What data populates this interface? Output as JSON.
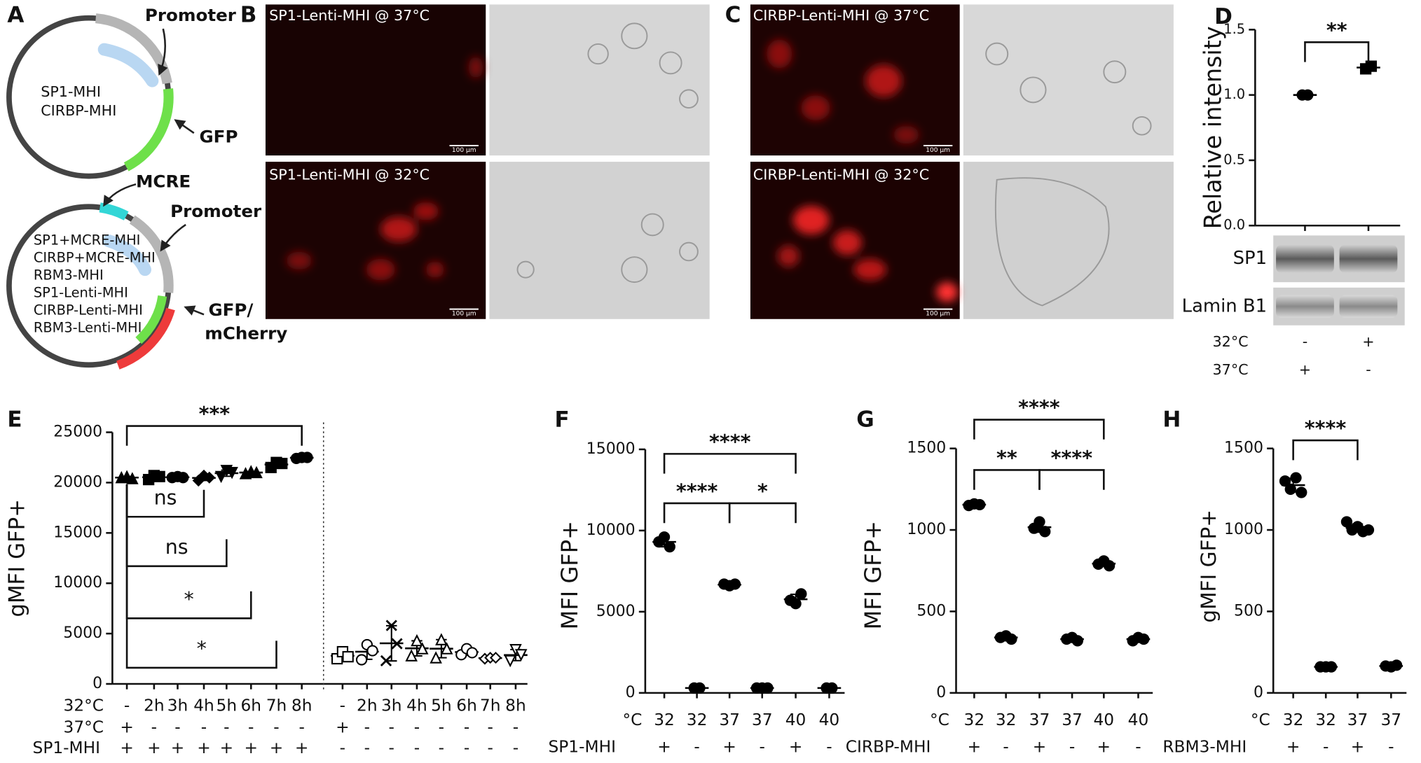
{
  "panel_a": {
    "label": "A",
    "top_plasmid": {
      "promoter": "Promoter",
      "names": [
        "SP1-MHI",
        "CIRBP-MHI"
      ],
      "reporter": "GFP"
    },
    "bottom_plasmid": {
      "element": "MCRE",
      "promoter": "Promoter",
      "names": [
        "SP1+MCRE-MHI",
        "CIRBP+MCRE-MHI",
        "RBM3-MHI",
        "SP1-Lenti-MHI",
        "CIRBP-Lenti-MHI",
        "RBM3-Lenti-MHI"
      ],
      "reporter": [
        "GFP/",
        "mCherry"
      ]
    }
  },
  "panel_b": {
    "label": "B",
    "images": [
      "SP1-Lenti-MHI @ 37°C",
      "SP1-Lenti-MHI @ 32°C"
    ],
    "scale_bar": "100 µm"
  },
  "panel_c": {
    "label": "C",
    "images": [
      "CIRBP-Lenti-MHI @ 37°C",
      "CIRBP-Lenti-MHI @ 32°C"
    ],
    "scale_bar": "100 µm"
  },
  "chart_data": [
    {
      "type": "dot",
      "panel_label": "D",
      "ylabel": "Relative intensity",
      "ylim": [
        0,
        1.5
      ],
      "yticks": [
        {
          "value": 0,
          "label": "0.0"
        },
        0.5,
        {
          "value": 1,
          "label": "1.0"
        },
        1.5
      ],
      "groups": [
        [
          1.0,
          1.0
        ],
        [
          1.2,
          1.22
        ]
      ],
      "color": "#000000",
      "blot_labels": [
        "SP1",
        "Lamin B1"
      ],
      "rows": [
        {
          "label": "32°C",
          "cells": [
            "-",
            "+"
          ]
        },
        {
          "label": "37°C",
          "cells": [
            "+",
            "-"
          ]
        }
      ],
      "comparisons": [
        {
          "groups": [
            0,
            1
          ],
          "label": "**"
        }
      ]
    },
    {
      "type": "dot",
      "panel_label": "E",
      "ylabel": "gMFI GFP+",
      "ylim": [
        0,
        25000
      ],
      "yticks": [
        0,
        5000,
        10000,
        15000,
        20000,
        25000
      ],
      "groups": [
        [
          20500,
          20600,
          20400
        ],
        [
          20300,
          20700,
          20600
        ],
        [
          20500,
          20600,
          20500
        ],
        [
          20200,
          20700,
          20500
        ],
        [
          20600,
          21200,
          21000
        ],
        [
          20900,
          21100,
          21000
        ],
        [
          21500,
          22000,
          21900
        ],
        [
          22400,
          22500,
          22500
        ],
        [
          2500,
          3200,
          2700
        ],
        [
          2400,
          3900,
          3300
        ],
        [
          2300,
          5800,
          4000
        ],
        [
          2800,
          4300,
          3500
        ],
        [
          2600,
          4400,
          3500
        ],
        [
          2900,
          3500,
          3100
        ],
        [
          2500,
          2600,
          2600
        ],
        [
          2300,
          3400,
          2900
        ]
      ],
      "color": "#000000",
      "rows": [
        {
          "label": "32°C",
          "cells": [
            "-",
            "2h",
            "3h",
            "4h",
            "5h",
            "6h",
            "7h",
            "8h",
            "-",
            "2h",
            "3h",
            "4h",
            "5h",
            "6h",
            "7h",
            "8h"
          ]
        },
        {
          "label": "37°C",
          "cells": [
            "+",
            "-",
            "-",
            "-",
            "-",
            "-",
            "-",
            "-",
            "+",
            "-",
            "-",
            "-",
            "-",
            "-",
            "-",
            "-"
          ]
        },
        {
          "label": "SP1-MHI",
          "cells": [
            "+",
            "+",
            "+",
            "+",
            "+",
            "+",
            "+",
            "+",
            "-",
            "-",
            "-",
            "-",
            "-",
            "-",
            "-",
            "-"
          ]
        }
      ],
      "comparisons": [
        {
          "groups": [
            0,
            7
          ],
          "label": "***"
        },
        {
          "groups": [
            0,
            3
          ],
          "label": "ns"
        },
        {
          "groups": [
            0,
            4
          ],
          "label": "ns"
        },
        {
          "groups": [
            0,
            5
          ],
          "label": "*"
        },
        {
          "groups": [
            0,
            6
          ],
          "label": "*"
        }
      ]
    },
    {
      "type": "dot",
      "panel_label": "F",
      "ylabel": "MFI GFP+",
      "ylim": [
        0,
        15000
      ],
      "yticks": [
        0,
        5000,
        10000,
        15000
      ],
      "groups": [
        [
          9300,
          9600,
          9000
        ],
        [
          300,
          300
        ],
        [
          6700,
          6600,
          6700
        ],
        [
          300,
          300,
          300
        ],
        [
          5700,
          5500,
          6100
        ],
        [
          300,
          300
        ]
      ],
      "color": "#000000",
      "rows": [
        {
          "label": "°C",
          "cells": [
            "32",
            "32",
            "37",
            "37",
            "40",
            "40"
          ]
        },
        {
          "label": "SP1-MHI",
          "cells": [
            "+",
            "-",
            "+",
            "-",
            "+",
            "-"
          ]
        }
      ],
      "comparisons": [
        {
          "groups": [
            0,
            4
          ],
          "label": "****"
        },
        {
          "groups": [
            0,
            2
          ],
          "label": "****"
        },
        {
          "groups": [
            2,
            4
          ],
          "label": "*"
        }
      ]
    },
    {
      "type": "dot",
      "panel_label": "G",
      "ylabel": "MFI GFP+",
      "ylim": [
        0,
        1500
      ],
      "yticks": [
        0,
        500,
        1000,
        1500
      ],
      "groups": [
        [
          1150,
          1160,
          1155
        ],
        [
          340,
          350,
          330
        ],
        [
          1010,
          1050,
          990
        ],
        [
          330,
          340,
          320
        ],
        [
          790,
          810,
          780
        ],
        [
          320,
          340,
          330
        ]
      ],
      "color": "#000000",
      "rows": [
        {
          "label": "°C",
          "cells": [
            "32",
            "32",
            "37",
            "37",
            "40",
            "40"
          ]
        },
        {
          "label": "CIRBP-MHI",
          "cells": [
            "+",
            "-",
            "+",
            "-",
            "+",
            "-"
          ]
        }
      ],
      "comparisons": [
        {
          "groups": [
            0,
            4
          ],
          "label": "****"
        },
        {
          "groups": [
            0,
            2
          ],
          "label": "**"
        },
        {
          "groups": [
            2,
            4
          ],
          "label": "****"
        }
      ]
    },
    {
      "type": "dot",
      "panel_label": "H",
      "ylabel": "gMFI GFP+",
      "ylim": [
        0,
        1500
      ],
      "yticks": [
        0,
        500,
        1000,
        1500
      ],
      "groups": [
        [
          1300,
          1250,
          1320,
          1230
        ],
        [
          160,
          160,
          160
        ],
        [
          1050,
          1000,
          1020,
          990,
          1000
        ],
        [
          165,
          160,
          170
        ]
      ],
      "color": "#000000",
      "rows": [
        {
          "label": "°C",
          "cells": [
            "32",
            "32",
            "37",
            "37"
          ]
        },
        {
          "label": "RBM3-MHI",
          "cells": [
            "+",
            "-",
            "+",
            "-"
          ]
        }
      ],
      "comparisons": [
        {
          "groups": [
            0,
            2
          ],
          "label": "****"
        }
      ]
    }
  ]
}
